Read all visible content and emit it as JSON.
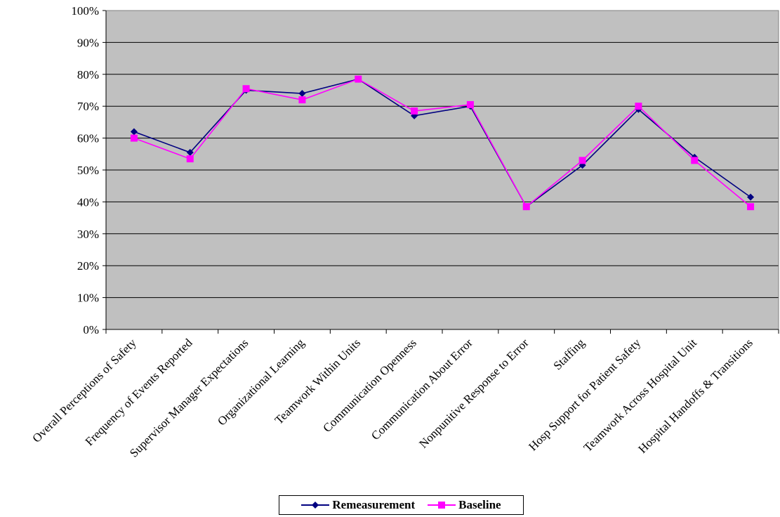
{
  "chart_data": {
    "type": "line",
    "categories": [
      "Overall Perceptions of Safety",
      "Frequency of Events Reported",
      "Supervisor Manager Expectations",
      "Organizational Learning",
      "Teamwork Within Units",
      "Communication Openness",
      "Communication About Error",
      "Nonpunitive Response to Error",
      "Staffing",
      "Hosp Support for Patient Safety",
      "Teamwork Across Hospital Unit",
      "Hospital Handoffs & Transitions"
    ],
    "series": [
      {
        "name": "Remeasurement",
        "color": "#000080",
        "marker": "diamond",
        "values": [
          62,
          55.5,
          75,
          74,
          78.5,
          67,
          70,
          38.5,
          51.5,
          69,
          54,
          41.5
        ]
      },
      {
        "name": "Baseline",
        "color": "#ff00ff",
        "marker": "square",
        "values": [
          60,
          53.5,
          75.5,
          72,
          78.5,
          68.5,
          70.5,
          38.5,
          53,
          70,
          53,
          38.5
        ]
      }
    ],
    "y_ticks": [
      "0%",
      "10%",
      "20%",
      "30%",
      "40%",
      "50%",
      "60%",
      "70%",
      "80%",
      "90%",
      "100%"
    ],
    "ylim": [
      0,
      100
    ],
    "plot_background": "#c0c0c0",
    "gridlines": true,
    "legend_position": "bottom"
  }
}
